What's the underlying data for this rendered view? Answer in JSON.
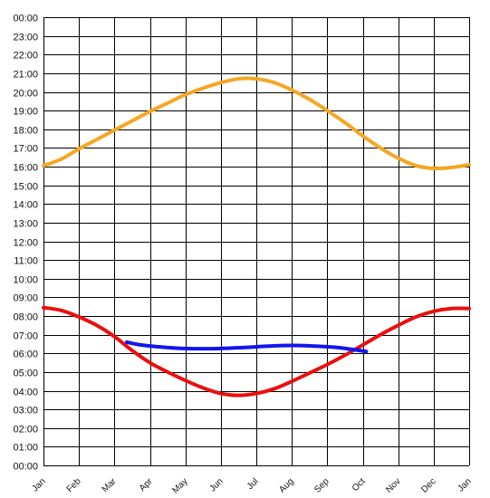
{
  "chart_data": {
    "type": "line",
    "title": "",
    "xlabel": "",
    "ylabel": "",
    "x_tick_labels": [
      "Jan",
      "Feb",
      "Mar",
      "Apr",
      "May",
      "Jun",
      "Jul",
      "Aug",
      "Sep",
      "Oct",
      "Nov",
      "Dec",
      "Jan"
    ],
    "y_tick_labels": [
      "00:00",
      "01:00",
      "02:00",
      "03:00",
      "04:00",
      "05:00",
      "06:00",
      "07:00",
      "08:00",
      "09:00",
      "10:00",
      "11:00",
      "12:00",
      "13:00",
      "14:00",
      "15:00",
      "16:00",
      "17:00",
      "18:00",
      "19:00",
      "20:00",
      "21:00",
      "22:00",
      "23:00",
      "00:00"
    ],
    "xlim": [
      0,
      12
    ],
    "ylim": [
      0,
      24
    ],
    "grid": true,
    "legend": "none",
    "series": [
      {
        "color": "#f5a623",
        "x": [
          0,
          0.5,
          1,
          1.5,
          2,
          2.5,
          3,
          3.5,
          4,
          4.5,
          5,
          5.5,
          6,
          6.5,
          7,
          7.5,
          8,
          8.5,
          9,
          9.5,
          10,
          10.5,
          11,
          11.5,
          12
        ],
        "y": [
          16.05,
          16.4,
          16.95,
          17.45,
          17.95,
          18.45,
          18.95,
          19.4,
          19.85,
          20.2,
          20.5,
          20.7,
          20.7,
          20.5,
          20.1,
          19.6,
          19.0,
          18.35,
          17.65,
          17.0,
          16.45,
          16.05,
          15.9,
          15.95,
          16.1
        ]
      },
      {
        "color": "#e81010",
        "x": [
          0,
          0.5,
          1,
          1.5,
          2,
          2.5,
          3,
          3.5,
          4,
          4.5,
          5,
          5.5,
          6,
          6.5,
          7,
          7.5,
          8,
          8.5,
          9,
          9.5,
          10,
          10.5,
          11,
          11.5,
          12
        ],
        "y": [
          8.45,
          8.3,
          7.95,
          7.5,
          6.9,
          6.15,
          5.5,
          5.0,
          4.55,
          4.15,
          3.85,
          3.75,
          3.85,
          4.1,
          4.5,
          4.95,
          5.4,
          5.9,
          6.45,
          7.0,
          7.5,
          7.95,
          8.25,
          8.4,
          8.4
        ]
      },
      {
        "color": "#1414ee",
        "x": [
          2.35,
          2.75,
          3.25,
          3.75,
          4.25,
          4.75,
          5.25,
          5.75,
          6.25,
          6.75,
          7.25,
          7.75,
          8.25,
          8.75,
          9.1
        ],
        "y": [
          6.6,
          6.45,
          6.35,
          6.28,
          6.25,
          6.25,
          6.28,
          6.32,
          6.38,
          6.42,
          6.42,
          6.38,
          6.32,
          6.2,
          6.1
        ]
      }
    ]
  }
}
